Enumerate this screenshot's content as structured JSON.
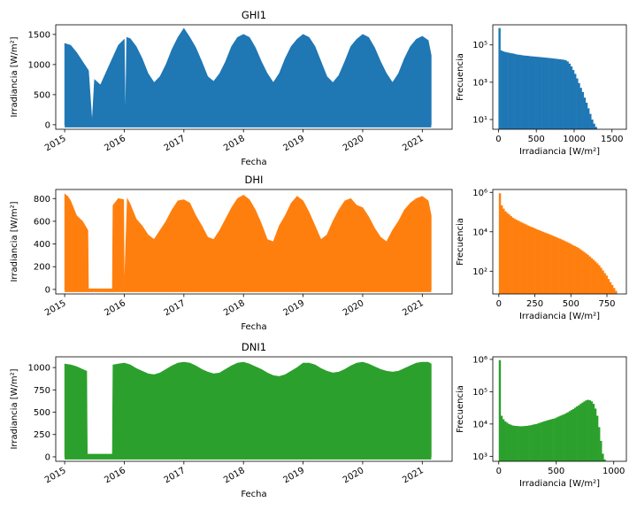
{
  "chart_data": [
    {
      "type": "area",
      "title": "GHI1",
      "xlabel": "Fecha",
      "ylabel": "Irradiancia [W/m²]",
      "color": "#1f77b4",
      "x_ticks": [
        "2015",
        "2016",
        "2017",
        "2018",
        "2019",
        "2020",
        "2021"
      ],
      "y_ticks": [
        0,
        500,
        1000,
        1500
      ],
      "xlim": [
        2014.85,
        2021.5
      ],
      "ylim": [
        -75,
        1660
      ],
      "x": [
        2015.0,
        2015.1,
        2015.2,
        2015.3,
        2015.4,
        2015.46,
        2015.5,
        2015.6,
        2015.7,
        2015.8,
        2015.9,
        2016.0,
        2016.02,
        2016.04,
        2016.1,
        2016.2,
        2016.3,
        2016.4,
        2016.5,
        2016.6,
        2016.7,
        2016.8,
        2016.9,
        2017.0,
        2017.1,
        2017.2,
        2017.3,
        2017.4,
        2017.5,
        2017.6,
        2017.7,
        2017.8,
        2017.9,
        2018.0,
        2018.1,
        2018.2,
        2018.3,
        2018.4,
        2018.5,
        2018.6,
        2018.7,
        2018.8,
        2018.9,
        2019.0,
        2019.1,
        2019.2,
        2019.3,
        2019.4,
        2019.5,
        2019.6,
        2019.7,
        2019.8,
        2019.9,
        2020.0,
        2020.1,
        2020.2,
        2020.3,
        2020.4,
        2020.5,
        2020.6,
        2020.7,
        2020.8,
        2020.9,
        2021.0,
        2021.1,
        2021.15
      ],
      "y": [
        1350,
        1320,
        1200,
        1050,
        900,
        40,
        750,
        660,
        880,
        1100,
        1320,
        1420,
        10,
        1450,
        1430,
        1300,
        1100,
        850,
        700,
        800,
        1000,
        1250,
        1450,
        1600,
        1450,
        1280,
        1050,
        800,
        720,
        850,
        1050,
        1300,
        1450,
        1500,
        1450,
        1280,
        1050,
        850,
        700,
        850,
        1100,
        1300,
        1420,
        1500,
        1450,
        1300,
        1050,
        800,
        700,
        820,
        1050,
        1300,
        1420,
        1500,
        1450,
        1280,
        1050,
        850,
        700,
        850,
        1100,
        1300,
        1420,
        1470,
        1400,
        1150
      ],
      "hist": {
        "xlabel": "Irradiancia [W/m²]",
        "ylabel": "Frecuencia",
        "x_ticks": [
          0,
          500,
          1000,
          1500
        ],
        "y_ticks": [
          "10¹",
          "10³",
          "10⁵"
        ],
        "y_tick_values": [
          10,
          1000,
          100000
        ],
        "xlim": [
          -75,
          1690
        ],
        "ylim_log": [
          3,
          1200000
        ],
        "bin_width": 25,
        "counts": [
          800000,
          50000,
          45000,
          42000,
          40000,
          38000,
          36000,
          35000,
          33000,
          31000,
          30000,
          29000,
          28000,
          27000,
          26500,
          26000,
          25000,
          24500,
          24000,
          23500,
          23000,
          22500,
          22000,
          21500,
          21000,
          20500,
          20000,
          19500,
          19000,
          18500,
          18000,
          17500,
          17000,
          16500,
          16000,
          15000,
          13000,
          10000,
          7000,
          4500,
          2800,
          1600,
          900,
          500,
          300,
          150,
          80,
          40,
          20,
          10,
          6,
          4,
          3
        ]
      }
    },
    {
      "type": "area",
      "title": "DHI",
      "xlabel": "Fecha",
      "ylabel": "Irradiancia [W/m²]",
      "color": "#ff7f0e",
      "x_ticks": [
        "2015",
        "2016",
        "2017",
        "2018",
        "2019",
        "2020",
        "2021"
      ],
      "y_ticks": [
        0,
        200,
        400,
        600,
        800
      ],
      "xlim": [
        2014.85,
        2021.5
      ],
      "ylim": [
        -40,
        880
      ],
      "x": [
        2015.0,
        2015.05,
        2015.1,
        2015.2,
        2015.3,
        2015.39,
        2015.4,
        2015.8,
        2015.81,
        2015.9,
        2015.99,
        2016.0,
        2016.05,
        2016.1,
        2016.2,
        2016.3,
        2016.4,
        2016.5,
        2016.6,
        2016.7,
        2016.8,
        2016.9,
        2017.0,
        2017.1,
        2017.2,
        2017.3,
        2017.4,
        2017.5,
        2017.6,
        2017.7,
        2017.8,
        2017.9,
        2018.0,
        2018.1,
        2018.2,
        2018.3,
        2018.4,
        2018.5,
        2018.6,
        2018.7,
        2018.8,
        2018.9,
        2019.0,
        2019.1,
        2019.2,
        2019.3,
        2019.4,
        2019.5,
        2019.6,
        2019.7,
        2019.8,
        2019.9,
        2020.0,
        2020.1,
        2020.2,
        2020.3,
        2020.4,
        2020.5,
        2020.6,
        2020.7,
        2020.8,
        2020.9,
        2021.0,
        2021.1,
        2021.15
      ],
      "y": [
        840,
        820,
        780,
        650,
        600,
        520,
        0,
        0,
        740,
        800,
        790,
        0,
        800,
        750,
        620,
        560,
        480,
        440,
        520,
        600,
        700,
        780,
        790,
        760,
        650,
        560,
        460,
        440,
        520,
        620,
        720,
        800,
        830,
        790,
        700,
        580,
        440,
        420,
        560,
        650,
        760,
        820,
        780,
        680,
        560,
        440,
        480,
        600,
        700,
        780,
        800,
        740,
        720,
        640,
        540,
        460,
        420,
        520,
        600,
        700,
        760,
        800,
        820,
        780,
        650
      ]
    },
    {
      "type": "area",
      "title": "DNI1",
      "xlabel": "Fecha",
      "ylabel": "Irradiancia [W/m²]",
      "color": "#2ca02c",
      "x_ticks": [
        "2015",
        "2016",
        "2017",
        "2018",
        "2019",
        "2020",
        "2021"
      ],
      "y_ticks": [
        0,
        250,
        500,
        750,
        1000
      ],
      "xlim": [
        2014.85,
        2021.5
      ],
      "ylim": [
        -50,
        1120
      ],
      "x": [
        2015.0,
        2015.1,
        2015.2,
        2015.3,
        2015.37,
        2015.38,
        2015.8,
        2015.81,
        2015.9,
        2016.0,
        2016.05,
        2016.1,
        2016.2,
        2016.3,
        2016.4,
        2016.5,
        2016.6,
        2016.7,
        2016.8,
        2016.9,
        2017.0,
        2017.1,
        2017.2,
        2017.3,
        2017.4,
        2017.5,
        2017.6,
        2017.7,
        2017.8,
        2017.9,
        2018.0,
        2018.1,
        2018.2,
        2018.3,
        2018.4,
        2018.5,
        2018.6,
        2018.7,
        2018.8,
        2018.9,
        2019.0,
        2019.1,
        2019.2,
        2019.3,
        2019.4,
        2019.5,
        2019.6,
        2019.7,
        2019.8,
        2019.9,
        2020.0,
        2020.1,
        2020.2,
        2020.3,
        2020.4,
        2020.5,
        2020.6,
        2020.7,
        2020.8,
        2020.9,
        2021.0,
        2021.1,
        2021.15
      ],
      "y": [
        1040,
        1030,
        1010,
        980,
        960,
        30,
        30,
        1030,
        1040,
        1050,
        1040,
        1030,
        990,
        960,
        930,
        920,
        940,
        980,
        1020,
        1050,
        1060,
        1050,
        1020,
        980,
        950,
        930,
        940,
        980,
        1020,
        1050,
        1060,
        1040,
        1010,
        980,
        940,
        910,
        900,
        920,
        960,
        1000,
        1050,
        1050,
        1030,
        990,
        960,
        940,
        950,
        980,
        1020,
        1050,
        1060,
        1040,
        1010,
        980,
        960,
        950,
        960,
        990,
        1020,
        1050,
        1060,
        1060,
        1040
      ],
      "hist": {
        "xlabel": "Irradiancia [W/m²]",
        "ylabel": "Frecuencia",
        "x_ticks": [
          0,
          500,
          1000
        ],
        "y_ticks": [
          "10³",
          "10⁴",
          "10⁵",
          "10⁶"
        ],
        "y_tick_values": [
          1000,
          10000,
          100000,
          1000000
        ],
        "xlim": [
          -52,
          1110
        ],
        "ylim_log": [
          700,
          1200000
        ],
        "bin_width": 16,
        "counts": [
          950000,
          18000,
          14000,
          12000,
          11000,
          10000,
          9500,
          9000,
          8800,
          8700,
          8600,
          8500,
          8500,
          8600,
          8700,
          8800,
          9000,
          9200,
          9500,
          9800,
          10000,
          10500,
          11000,
          11500,
          12000,
          12500,
          13000,
          13500,
          14000,
          14500,
          15000,
          16000,
          17000,
          18000,
          19000,
          20000,
          21500,
          23000,
          25000,
          27000,
          29000,
          32000,
          35000,
          38000,
          42000,
          46000,
          50000,
          54000,
          56000,
          54000,
          50000,
          42000,
          30000,
          18000,
          8000,
          3000,
          1200,
          800,
          700,
          600,
          500,
          400,
          300,
          300,
          200,
          200
        ]
      }
    },
    {
      "type": "bar",
      "title": "",
      "panel": "DHI",
      "xlabel": "Irradiancia [W/m²]",
      "ylabel": "Frecuencia",
      "x_ticks": [
        0,
        250,
        500,
        750
      ],
      "y_ticks": [
        "10²",
        "10⁴",
        "10⁶"
      ],
      "y_tick_values": [
        100,
        10000,
        1000000
      ],
      "xlim": [
        -42,
        885
      ],
      "ylim_log": [
        7,
        1400000
      ],
      "bin_width": 13,
      "counts": [
        900000,
        220000,
        150000,
        110000,
        90000,
        75000,
        62000,
        52000,
        45000,
        40000,
        36000,
        32000,
        29000,
        26000,
        23500,
        21000,
        19000,
        17500,
        16000,
        14500,
        13000,
        12000,
        11000,
        10000,
        9200,
        8500,
        7800,
        7100,
        6500,
        5900,
        5400,
        4900,
        4500,
        4100,
        3700,
        3300,
        3000,
        2700,
        2400,
        2100,
        1900,
        1700,
        1500,
        1300,
        1100,
        950,
        800,
        680,
        560,
        460,
        380,
        310,
        250,
        200,
        150,
        110,
        80,
        60,
        40,
        28,
        20,
        14,
        10
      ]
    }
  ]
}
